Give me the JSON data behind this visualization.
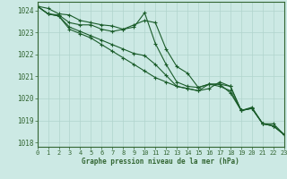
{
  "xlabel": "Graphe pression niveau de la mer (hPa)",
  "ylim": [
    1017.8,
    1024.4
  ],
  "xlim": [
    0,
    23
  ],
  "yticks": [
    1018,
    1019,
    1020,
    1021,
    1022,
    1023,
    1024
  ],
  "xticks": [
    0,
    1,
    2,
    3,
    4,
    5,
    6,
    7,
    8,
    9,
    10,
    11,
    12,
    13,
    14,
    15,
    16,
    17,
    18,
    19,
    20,
    21,
    22,
    23
  ],
  "bg_color": "#cce9e4",
  "grid_color": "#b0d4cc",
  "line_color": "#1a5c2a",
  "axis_color": "#336633",
  "series": [
    [
      1024.2,
      1024.1,
      1023.85,
      1023.8,
      1023.55,
      1023.45,
      1023.35,
      1023.3,
      1023.15,
      1023.25,
      1023.9,
      1022.5,
      1021.55,
      1020.75,
      1020.55,
      1020.5,
      1020.65,
      1020.65,
      1020.25,
      1019.45,
      1019.6,
      1018.85,
      1018.85,
      1018.35
    ],
    [
      1024.2,
      1023.85,
      1023.8,
      1023.45,
      1023.35,
      1023.35,
      1023.15,
      1023.05,
      1023.15,
      1023.35,
      1023.55,
      1023.45,
      1022.25,
      1021.45,
      1021.15,
      1020.5,
      1020.65,
      1020.55,
      1020.35,
      1019.45,
      1019.55,
      1018.85,
      1018.75,
      1018.35
    ],
    [
      1024.2,
      1023.85,
      1023.75,
      1023.25,
      1023.05,
      1022.85,
      1022.65,
      1022.45,
      1022.25,
      1022.05,
      1021.95,
      1021.55,
      1021.05,
      1020.55,
      1020.45,
      1020.35,
      1020.65,
      1020.65,
      1020.55,
      1019.45,
      1019.55,
      1018.85,
      1018.75,
      1018.35
    ],
    [
      1024.2,
      1023.85,
      1023.75,
      1023.15,
      1022.95,
      1022.75,
      1022.45,
      1022.15,
      1021.85,
      1021.55,
      1021.25,
      1020.95,
      1020.75,
      1020.55,
      1020.45,
      1020.35,
      1020.45,
      1020.75,
      1020.55,
      1019.45,
      1019.55,
      1018.85,
      1018.75,
      1018.35
    ]
  ]
}
